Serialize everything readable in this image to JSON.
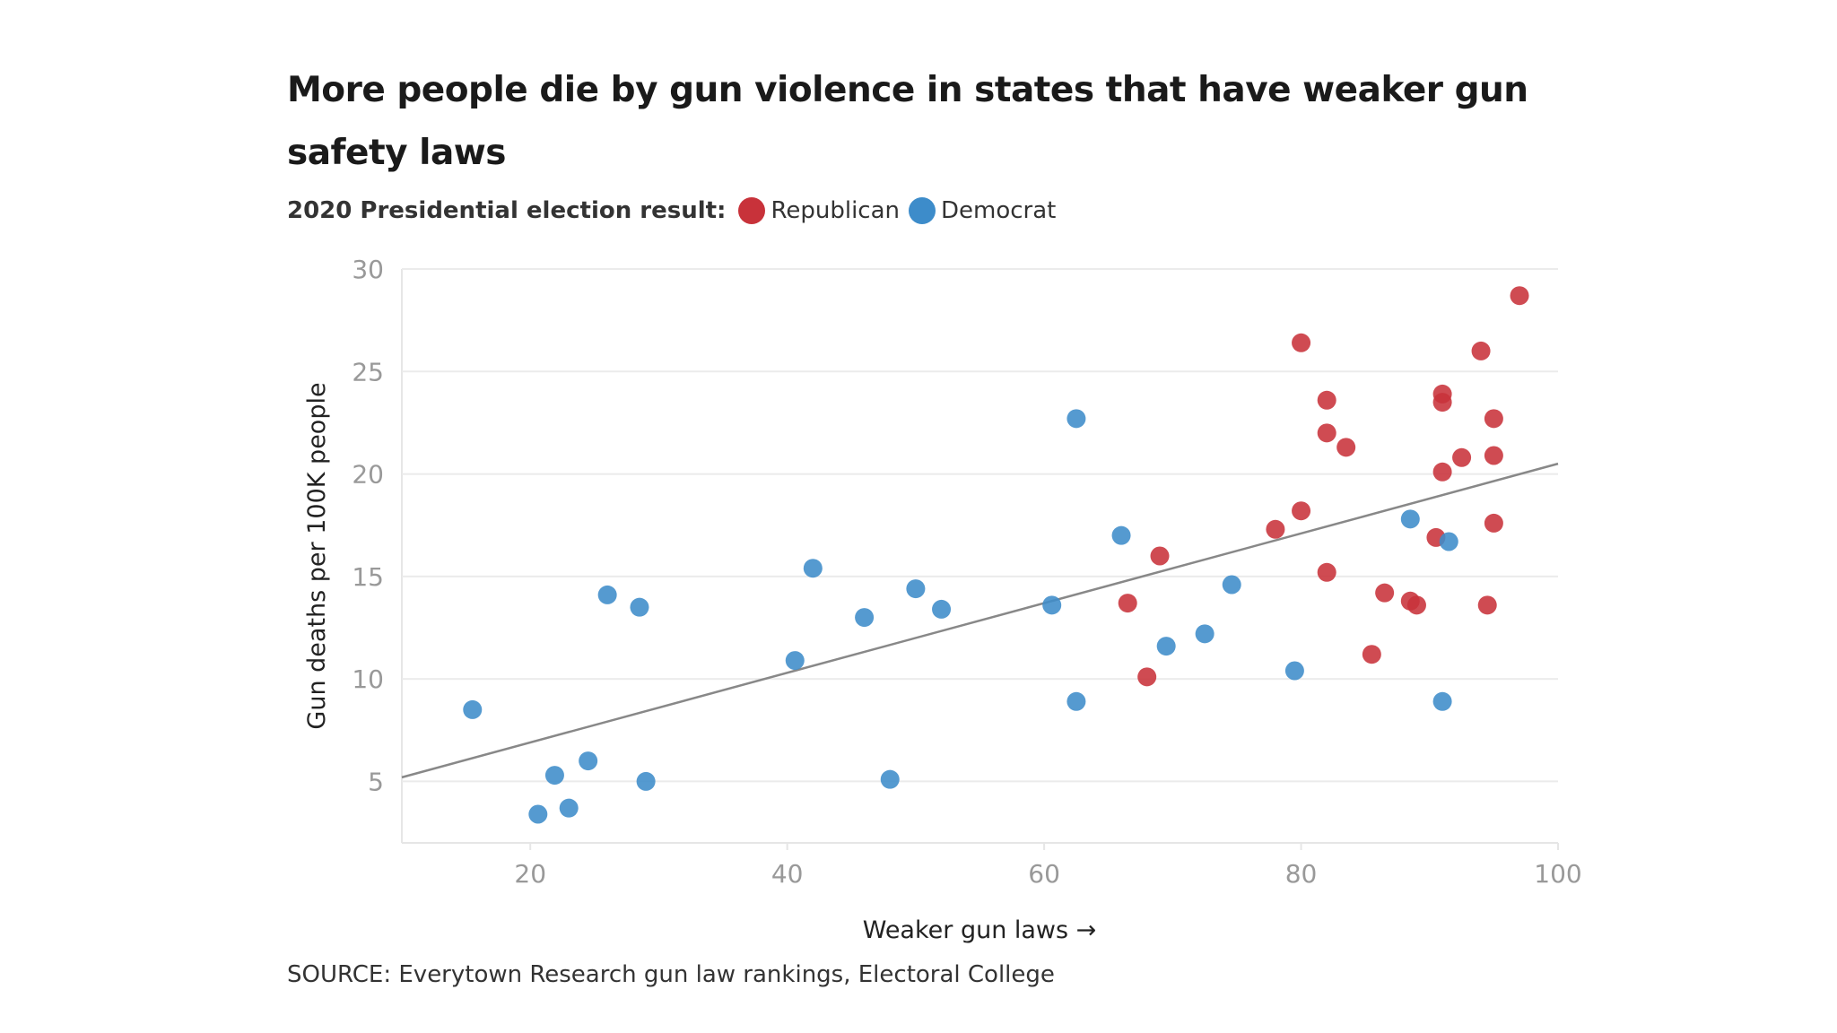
{
  "title": "More people die by gun violence in states that have weaker gun safety laws",
  "legend": {
    "label": "2020 Presidential election result:",
    "items": [
      {
        "name": "Republican",
        "color": "#c8323a"
      },
      {
        "name": "Democrat",
        "color": "#3d8cca"
      }
    ]
  },
  "source": "SOURCE: Everytown Research gun law rankings, Electoral College",
  "chart_data": {
    "type": "scatter",
    "title": "More people die by gun violence in states that have weaker gun safety laws",
    "xlabel": "Weaker gun laws →",
    "ylabel": "Gun deaths per 100K people",
    "xlim": [
      10,
      100
    ],
    "ylim": [
      2,
      30
    ],
    "xticks": [
      20,
      40,
      60,
      80,
      100
    ],
    "yticks": [
      5,
      10,
      15,
      20,
      25,
      30
    ],
    "grid": "horizontal",
    "legend_position": "top-left",
    "trendline": {
      "x": [
        10,
        100
      ],
      "y": [
        5.2,
        20.5
      ],
      "color": "#888888"
    },
    "series": [
      {
        "name": "Republican",
        "color": "#c8323a",
        "points": [
          [
            66.5,
            13.7
          ],
          [
            68.0,
            10.1
          ],
          [
            69.0,
            16.0
          ],
          [
            78.0,
            17.3
          ],
          [
            80.0,
            26.4
          ],
          [
            80.0,
            18.2
          ],
          [
            82.0,
            23.6
          ],
          [
            82.0,
            22.0
          ],
          [
            82.0,
            15.2
          ],
          [
            83.5,
            21.3
          ],
          [
            85.5,
            11.2
          ],
          [
            86.5,
            14.2
          ],
          [
            88.5,
            13.8
          ],
          [
            89.0,
            13.6
          ],
          [
            90.5,
            16.9
          ],
          [
            91.0,
            20.1
          ],
          [
            91.0,
            23.9
          ],
          [
            91.0,
            23.5
          ],
          [
            92.5,
            20.8
          ],
          [
            94.0,
            26.0
          ],
          [
            94.5,
            13.6
          ],
          [
            95.0,
            22.7
          ],
          [
            95.0,
            20.9
          ],
          [
            95.0,
            17.6
          ],
          [
            97.0,
            28.7
          ]
        ]
      },
      {
        "name": "Democrat",
        "color": "#3d8cca",
        "points": [
          [
            15.5,
            8.5
          ],
          [
            20.6,
            3.4
          ],
          [
            21.9,
            5.3
          ],
          [
            23.0,
            3.7
          ],
          [
            24.5,
            6.0
          ],
          [
            26.0,
            14.1
          ],
          [
            28.5,
            13.5
          ],
          [
            29.0,
            5.0
          ],
          [
            40.6,
            10.9
          ],
          [
            42.0,
            15.4
          ],
          [
            46.0,
            13.0
          ],
          [
            48.0,
            5.1
          ],
          [
            50.0,
            14.4
          ],
          [
            52.0,
            13.4
          ],
          [
            60.6,
            13.6
          ],
          [
            62.5,
            22.7
          ],
          [
            62.5,
            8.9
          ],
          [
            66.0,
            17.0
          ],
          [
            69.5,
            11.6
          ],
          [
            72.5,
            12.2
          ],
          [
            74.6,
            14.6
          ],
          [
            79.5,
            10.4
          ],
          [
            88.5,
            17.8
          ],
          [
            91.5,
            16.7
          ],
          [
            91.0,
            8.9
          ]
        ]
      }
    ]
  }
}
